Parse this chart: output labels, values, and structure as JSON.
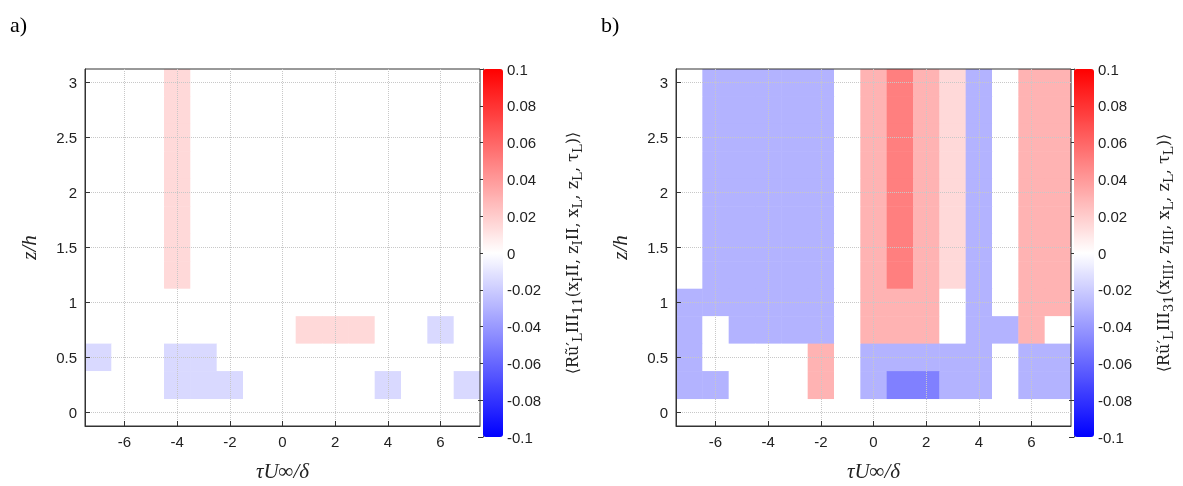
{
  "chart_data": [
    {
      "type": "heatmap",
      "title": "a)",
      "xlabel": "τU∞/δ",
      "ylabel": "z/h",
      "clabel": "⟨Rũ′$_{L}$III$_{11}$(x$_{I}$II, z$_{I}$II, x$_{L}$, z$_{L}$, τ$_{L}$)⟩",
      "categories": [
        null,
        "-6",
        null,
        "-4",
        null,
        "-2",
        null,
        "0",
        null,
        "2",
        null,
        "4",
        null,
        "6",
        null
      ],
      "y_categories": [
        "3",
        null,
        "2.5",
        null,
        "2",
        null,
        "1.5",
        null,
        "1",
        null,
        "0.5",
        null,
        "0"
      ],
      "grid": true,
      "clim": [
        -0.1,
        0.1
      ],
      "cticks": [
        -0.1,
        -0.08,
        -0.06,
        -0.04,
        -0.02,
        0,
        0.02,
        0.04,
        0.06,
        0.08,
        0.1
      ],
      "colors": [
        "#0000ff",
        "#ffffff",
        "#ff0000"
      ],
      "cells": [
        [
          0,
          0,
          0,
          0.015,
          0,
          0,
          0,
          0,
          0,
          0,
          0,
          0,
          0,
          0,
          0
        ],
        [
          0,
          0,
          0,
          0.015,
          0,
          0,
          0,
          0,
          0,
          0,
          0,
          0,
          0,
          0,
          0
        ],
        [
          0,
          0,
          0,
          0.015,
          0,
          0,
          0,
          0,
          0,
          0,
          0,
          0,
          0,
          0,
          0
        ],
        [
          0,
          0,
          0,
          0.015,
          0,
          0,
          0,
          0,
          0,
          0,
          0,
          0,
          0,
          0,
          0
        ],
        [
          0,
          0,
          0,
          0.015,
          0,
          0,
          0,
          0,
          0,
          0,
          0,
          0,
          0,
          0,
          0
        ],
        [
          0,
          0,
          0,
          0.015,
          0,
          0,
          0,
          0,
          0,
          0,
          0,
          0,
          0,
          0,
          0
        ],
        [
          0,
          0,
          0,
          0.015,
          0,
          0,
          0,
          0,
          0,
          0,
          0,
          0,
          0,
          0,
          0
        ],
        [
          0,
          0,
          0,
          0.015,
          0,
          0,
          0,
          0,
          0,
          0,
          0,
          0,
          0,
          0,
          0
        ],
        [
          0,
          0,
          0,
          0,
          0,
          0,
          0,
          0,
          0,
          0,
          0,
          0,
          0,
          0,
          0
        ],
        [
          0,
          0,
          0,
          0,
          0,
          0,
          0,
          0,
          0.015,
          0.015,
          0.015,
          0,
          0,
          -0.015,
          0
        ],
        [
          -0.015,
          0,
          0,
          -0.015,
          -0.015,
          0,
          0,
          0,
          0,
          0,
          0,
          0,
          0,
          0,
          0
        ],
        [
          0,
          0,
          0,
          -0.015,
          -0.015,
          -0.015,
          0,
          0,
          0,
          0,
          0,
          -0.015,
          0,
          0,
          -0.015
        ],
        [
          null,
          null,
          null,
          null,
          null,
          null,
          null,
          null,
          null,
          null,
          null,
          null,
          null,
          null,
          null
        ]
      ]
    },
    {
      "type": "heatmap",
      "title": "b)",
      "xlabel": "τU∞/δ",
      "ylabel": "z/h",
      "clabel": "⟨Rũ′$_{L}$III$_{31}$(x$_{III}$, z$_{III}$, x$_{L}$, z$_{L}$, τ$_{L}$)⟩",
      "categories": [
        null,
        "-6",
        null,
        "-4",
        null,
        "-2",
        null,
        "0",
        null,
        "2",
        null,
        "4",
        null,
        "6",
        null
      ],
      "y_categories": [
        "3",
        null,
        "2.5",
        null,
        "2",
        null,
        "1.5",
        null,
        "1",
        null,
        "0.5",
        null,
        "0"
      ],
      "grid": true,
      "clim": [
        -0.1,
        0.1
      ],
      "cticks": [
        -0.1,
        -0.08,
        -0.06,
        -0.04,
        -0.02,
        0,
        0.02,
        0.04,
        0.06,
        0.08,
        0.1
      ],
      "colors": [
        "#0000ff",
        "#ffffff",
        "#ff0000"
      ],
      "cells": [
        [
          0,
          -0.03,
          -0.03,
          -0.03,
          -0.03,
          -0.03,
          0,
          0.03,
          0.05,
          0.03,
          0.015,
          -0.03,
          0,
          0.03,
          0.03
        ],
        [
          0,
          -0.03,
          -0.03,
          -0.03,
          -0.03,
          -0.03,
          0,
          0.03,
          0.05,
          0.03,
          0.015,
          -0.03,
          0,
          0.03,
          0.03
        ],
        [
          0,
          -0.03,
          -0.03,
          -0.03,
          -0.03,
          -0.03,
          0,
          0.03,
          0.05,
          0.03,
          0.015,
          -0.03,
          0,
          0.03,
          0.03
        ],
        [
          0,
          -0.03,
          -0.03,
          -0.03,
          -0.03,
          -0.03,
          0,
          0.03,
          0.05,
          0.03,
          0.015,
          -0.03,
          0,
          0.03,
          0.03
        ],
        [
          0,
          -0.03,
          -0.03,
          -0.03,
          -0.03,
          -0.03,
          0,
          0.03,
          0.05,
          0.03,
          0.015,
          -0.03,
          0,
          0.03,
          0.03
        ],
        [
          0,
          -0.03,
          -0.03,
          -0.03,
          -0.03,
          -0.03,
          0,
          0.03,
          0.05,
          0.03,
          0.015,
          -0.03,
          0,
          0.03,
          0.03
        ],
        [
          0,
          -0.03,
          -0.03,
          -0.03,
          -0.03,
          -0.03,
          0,
          0.03,
          0.05,
          0.03,
          0.015,
          -0.03,
          0,
          0.03,
          0.03
        ],
        [
          0,
          -0.03,
          -0.03,
          -0.03,
          -0.03,
          -0.03,
          0,
          0.03,
          0.05,
          0.03,
          0.015,
          -0.03,
          0,
          0.03,
          0.03
        ],
        [
          -0.03,
          -0.03,
          -0.03,
          -0.03,
          -0.03,
          -0.03,
          0,
          0.03,
          0.03,
          0.03,
          0,
          -0.03,
          0,
          0.03,
          0.03
        ],
        [
          -0.03,
          0,
          -0.03,
          -0.03,
          -0.03,
          -0.03,
          0,
          0.03,
          0.03,
          0.03,
          0,
          -0.03,
          -0.03,
          0.03,
          0
        ],
        [
          -0.03,
          0,
          0,
          0,
          0,
          0.03,
          0,
          -0.03,
          -0.03,
          -0.03,
          -0.03,
          -0.03,
          0,
          -0.03,
          -0.03
        ],
        [
          -0.03,
          -0.03,
          0,
          0,
          0,
          0.03,
          0,
          -0.03,
          -0.05,
          -0.05,
          -0.03,
          -0.03,
          0,
          -0.03,
          -0.03
        ],
        [
          null,
          null,
          null,
          null,
          null,
          null,
          null,
          null,
          null,
          null,
          null,
          null,
          null,
          null,
          null
        ]
      ]
    }
  ]
}
